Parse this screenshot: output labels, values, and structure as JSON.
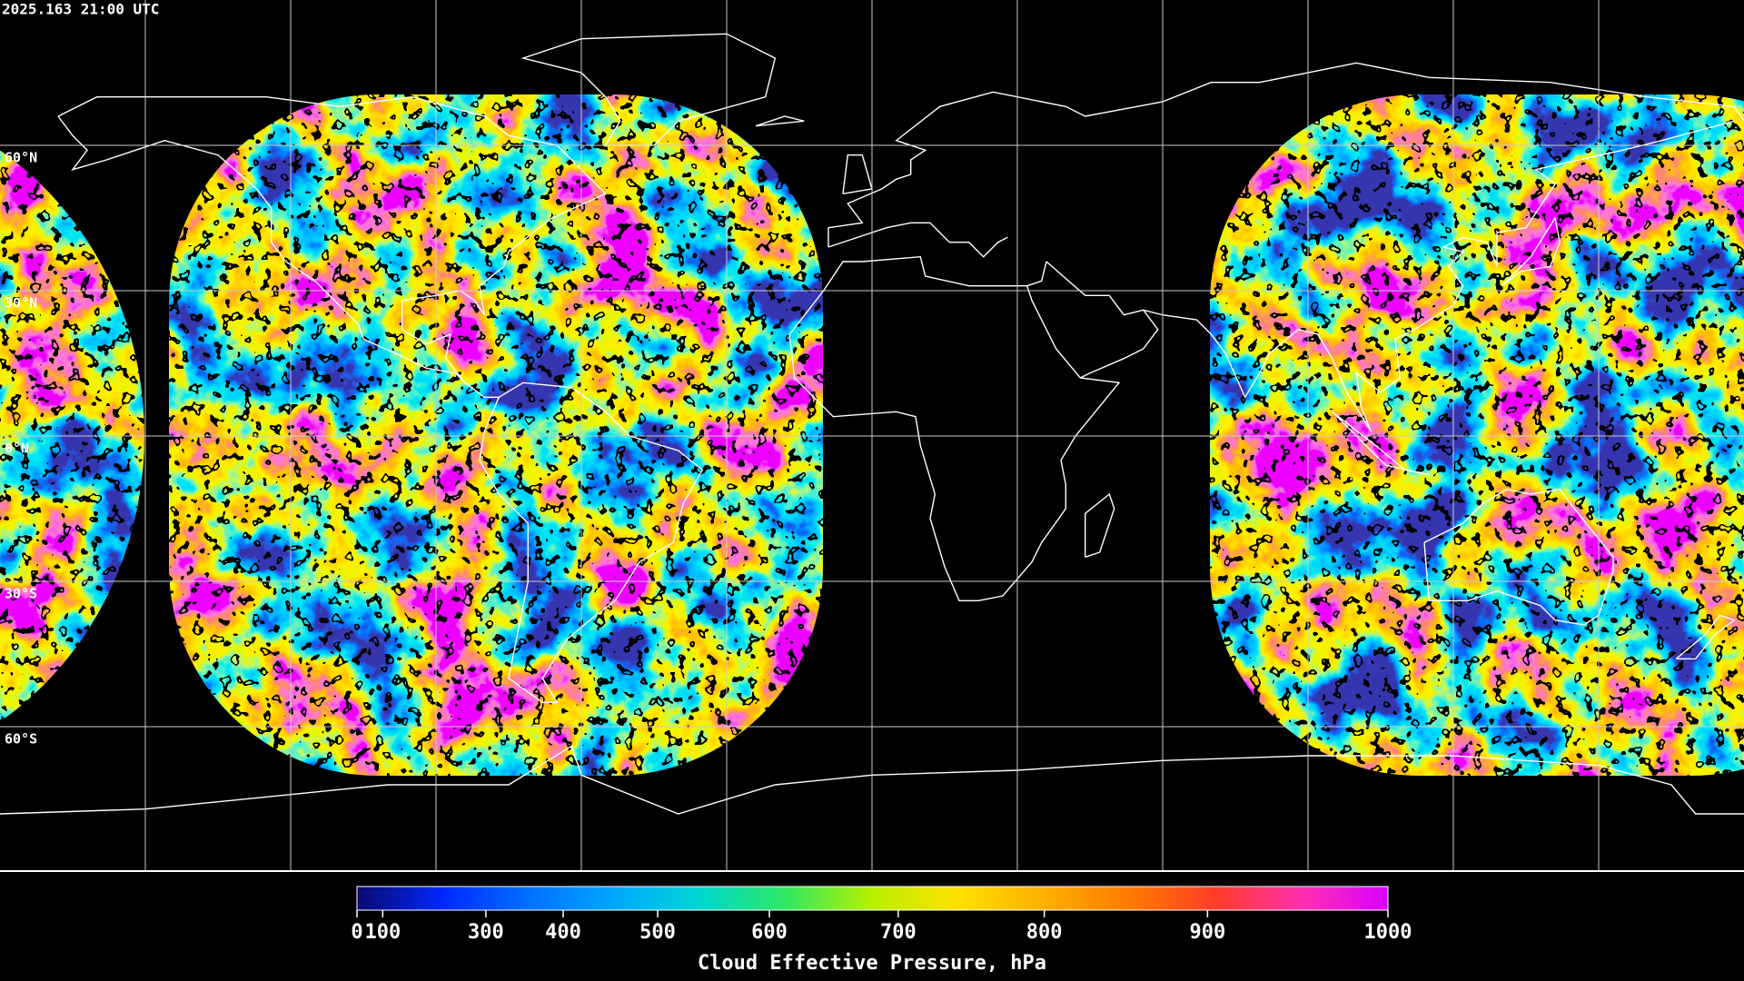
{
  "timestamp": "2025.163 21:00 UTC",
  "latitude_labels": [
    "60°N",
    "30°N",
    "0°N",
    "30°S",
    "60°S"
  ],
  "colorbar": {
    "title": "Cloud Effective Pressure, hPa",
    "range": [
      0,
      1000
    ],
    "scale": "quadratic",
    "ticks": [
      0,
      100,
      300,
      400,
      500,
      600,
      700,
      800,
      900,
      1000
    ],
    "colormap": [
      "#0a0a6e",
      "#0028ff",
      "#0070ff",
      "#00a8ff",
      "#00d8d0",
      "#30e860",
      "#b8f000",
      "#ffe000",
      "#ffb000",
      "#ff7a00",
      "#ff3c28",
      "#ff30b0",
      "#d800ff"
    ]
  }
}
